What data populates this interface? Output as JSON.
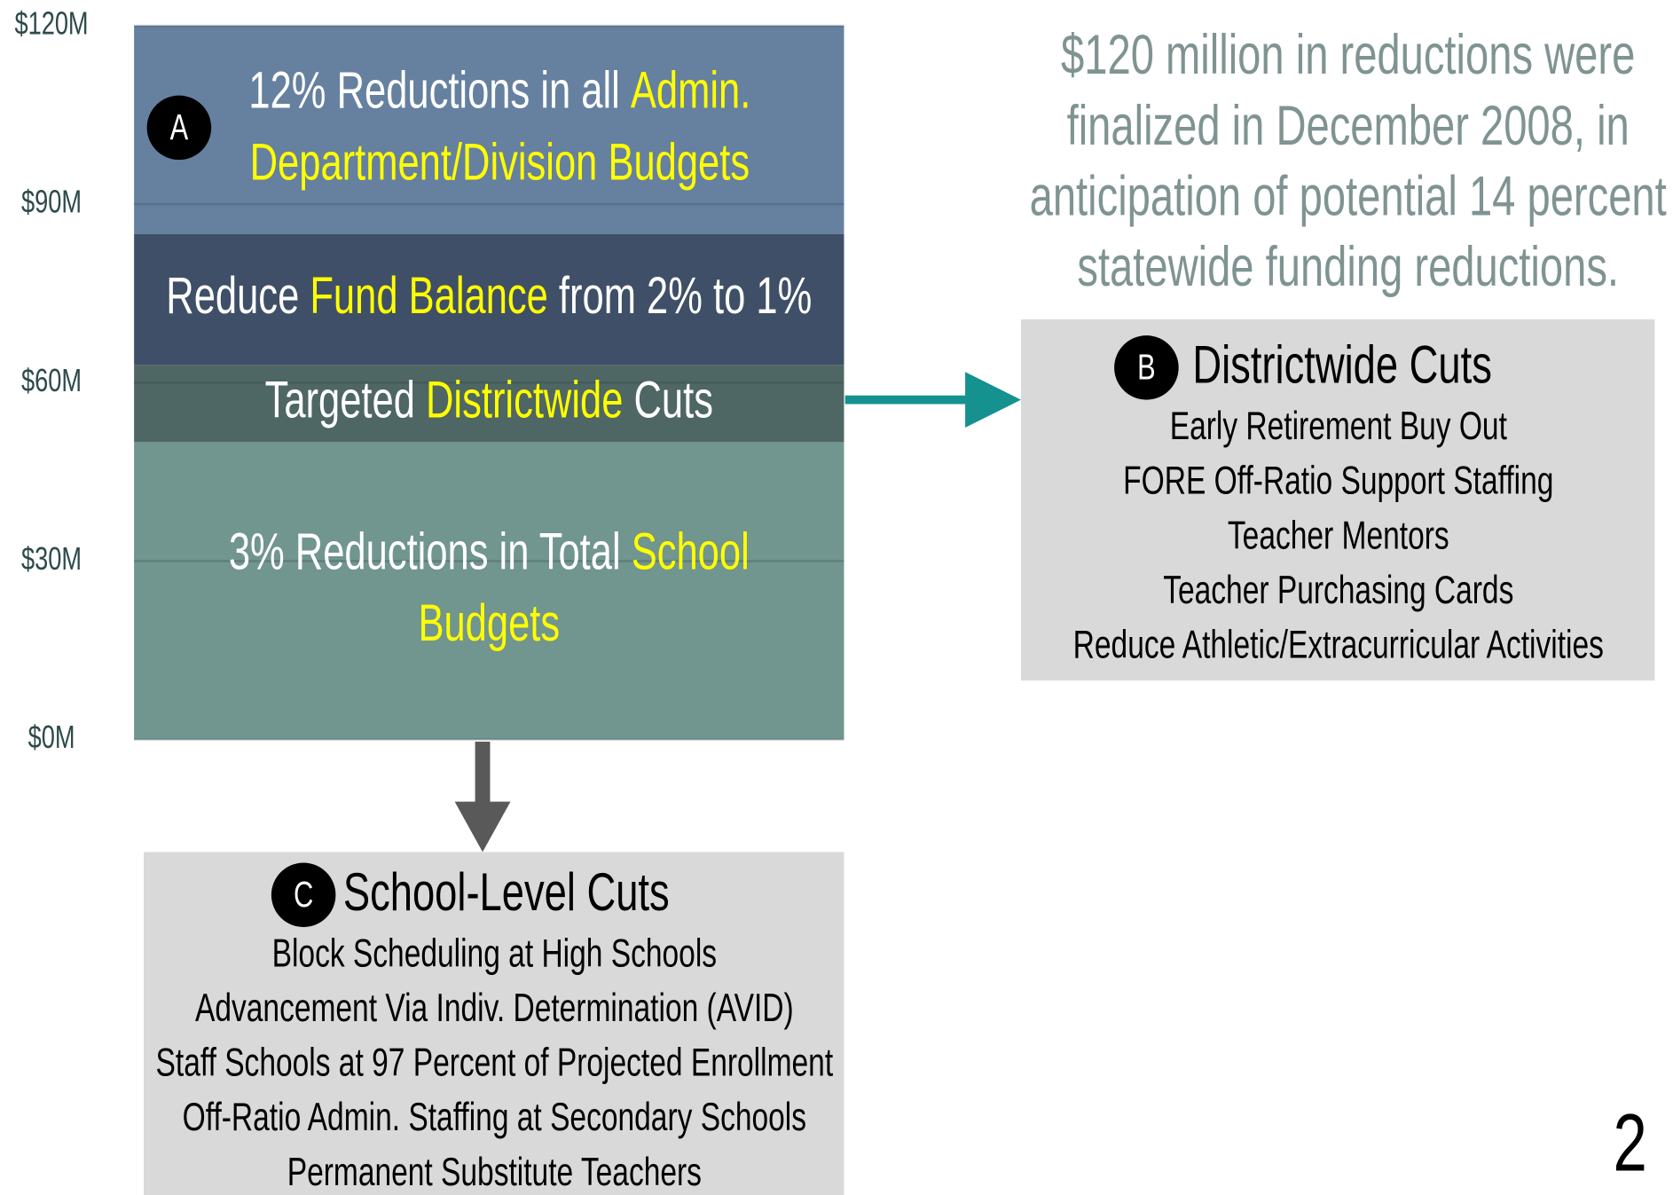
{
  "chart_data": {
    "type": "stacked_bar",
    "ylim": [
      0,
      120
    ],
    "yticks": [
      {
        "value": 0,
        "label": "$0M"
      },
      {
        "value": 30,
        "label": "$30M"
      },
      {
        "value": 60,
        "label": "$60M"
      },
      {
        "value": 90,
        "label": "$90M"
      },
      {
        "value": 120,
        "label": "$120M"
      }
    ],
    "grid": true,
    "series": [
      {
        "color": "#71958f",
        "values": [
          50
        ],
        "label_lines": [
          [
            {
              "text": "3% Reductions in Total ",
              "color": "#ffffff"
            },
            {
              "text": "School",
              "color": "#ffff00"
            }
          ],
          [
            {
              "text": "Budgets",
              "color": "#ffff00"
            }
          ]
        ]
      },
      {
        "color": "#4e6664",
        "values": [
          13
        ],
        "label_lines": [
          [
            {
              "text": "Targeted ",
              "color": "#ffffff"
            },
            {
              "text": "Districtwide",
              "color": "#ffff00"
            },
            {
              "text": " Cuts",
              "color": "#ffffff"
            }
          ]
        ]
      },
      {
        "color": "#3f4f67",
        "values": [
          22
        ],
        "label_lines": [
          [
            {
              "text": "Reduce ",
              "color": "#ffffff"
            },
            {
              "text": "Fund Balance",
              "color": "#ffff00"
            },
            {
              "text": " from 2% to 1%",
              "color": "#ffffff"
            }
          ]
        ]
      },
      {
        "color": "#6680a0",
        "values": [
          35
        ],
        "badge": "A",
        "label_lines": [
          [
            {
              "text": "12% Reductions in all ",
              "color": "#ffffff"
            },
            {
              "text": "Admin.",
              "color": "#ffff00"
            }
          ],
          [
            {
              "text": "Department/Division Budgets",
              "color": "#ffff00"
            }
          ]
        ]
      }
    ],
    "annotation": [
      "$120 million in reductions were",
      "finalized in December 2008, in",
      "anticipation of potential 14 percent",
      "statewide funding reductions."
    ]
  },
  "districtwide_box": {
    "badge": "B",
    "heading": "Districtwide Cuts",
    "items": [
      "Early Retirement Buy Out",
      "FORE Off-Ratio Support Staffing",
      "Teacher Mentors",
      "Teacher Purchasing Cards",
      "Reduce Athletic/Extracurricular Activities"
    ]
  },
  "school_box": {
    "badge": "C",
    "heading": "School-Level Cuts",
    "items": [
      "Block Scheduling at High Schools",
      "Advancement Via Indiv. Determination (AVID)",
      "Staff Schools at 97 Percent of Projected Enrollment",
      "Off-Ratio Admin. Staffing at Secondary Schools",
      "Permanent Substitute Teachers"
    ]
  },
  "page_number": "2"
}
